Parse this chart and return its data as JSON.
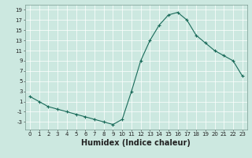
{
  "x": [
    0,
    1,
    2,
    3,
    4,
    5,
    6,
    7,
    8,
    9,
    10,
    11,
    12,
    13,
    14,
    15,
    16,
    17,
    18,
    19,
    20,
    21,
    22,
    23
  ],
  "y": [
    2,
    1,
    0,
    -0.5,
    -1,
    -1.5,
    -2,
    -2.5,
    -3,
    -3.5,
    -2.5,
    3,
    9,
    13,
    16,
    18,
    18.5,
    17,
    14,
    12.5,
    11,
    10,
    9,
    6
  ],
  "line_color": "#1a6b5a",
  "marker": "+",
  "marker_size": 3,
  "marker_linewidth": 0.8,
  "line_width": 0.8,
  "xlabel": "Humidex (Indice chaleur)",
  "xlim": [
    -0.5,
    23.5
  ],
  "ylim": [
    -4.5,
    20
  ],
  "yticks": [
    -3,
    -1,
    1,
    3,
    5,
    7,
    9,
    11,
    13,
    15,
    17,
    19
  ],
  "xticks": [
    0,
    1,
    2,
    3,
    4,
    5,
    6,
    7,
    8,
    9,
    10,
    11,
    12,
    13,
    14,
    15,
    16,
    17,
    18,
    19,
    20,
    21,
    22,
    23
  ],
  "bg_color": "#cce8e0",
  "grid_color": "#ffffff",
  "border_color": "#7a9a90",
  "tick_fontsize": 5,
  "xlabel_fontsize": 7
}
